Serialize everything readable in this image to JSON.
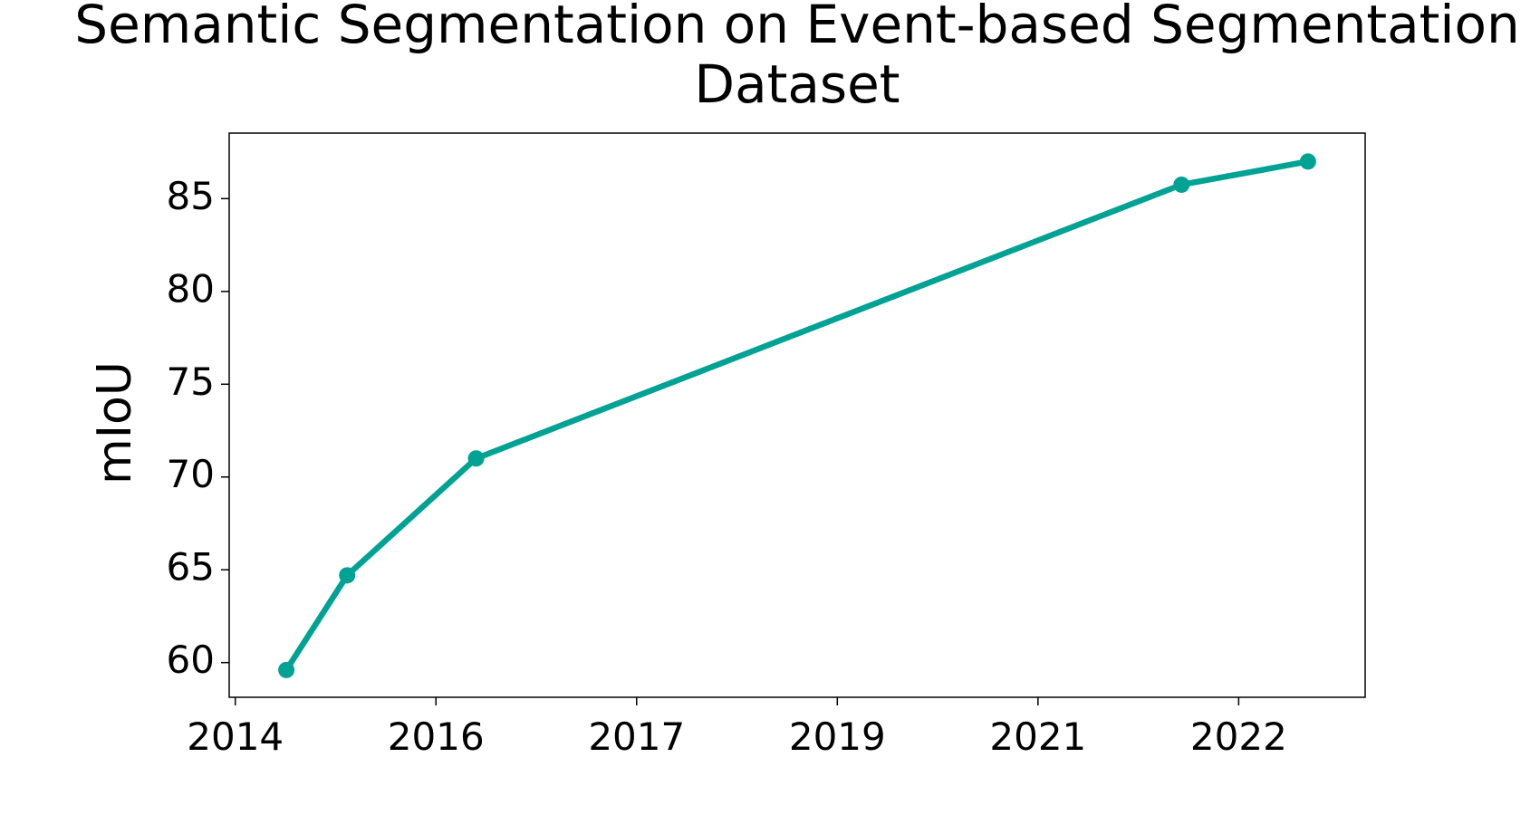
{
  "chart_data": {
    "type": "line",
    "title": "Semantic Segmentation on Event-based Segmentation\nDataset",
    "ylabel": "mIoU",
    "x": [
      2014.42,
      2014.92,
      2015.98,
      2021.78,
      2022.82
    ],
    "series": [
      {
        "name": "mIoU",
        "color": "#00a294",
        "values": [
          59.6,
          64.7,
          71.0,
          85.75,
          87.0
        ]
      }
    ],
    "xlim": [
      2013.95,
      2023.29
    ],
    "xticks": [
      {
        "value": 2014.0,
        "label": "2014"
      },
      {
        "value": 2015.65,
        "label": "2016"
      },
      {
        "value": 2017.3,
        "label": "2017"
      },
      {
        "value": 2018.95,
        "label": "2019"
      },
      {
        "value": 2020.6,
        "label": "2021"
      },
      {
        "value": 2022.25,
        "label": "2022"
      }
    ],
    "ylim": [
      58.13,
      88.53
    ],
    "yticks": [
      60,
      65,
      70,
      75,
      80,
      85
    ],
    "grid": false
  }
}
